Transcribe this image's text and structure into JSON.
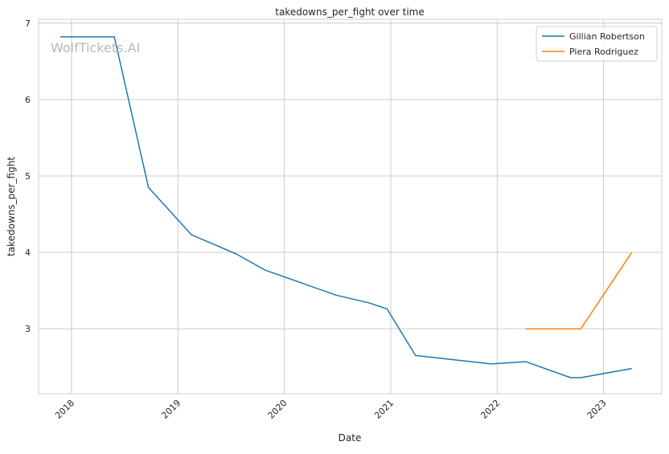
{
  "chart_data": {
    "type": "line",
    "title": "takedowns_per_fight over time",
    "xlabel": "Date",
    "ylabel": "takedowns_per_fight",
    "watermark": "WolfTickets.AI",
    "x_ticks": [
      "2018",
      "2019",
      "2020",
      "2021",
      "2022",
      "2023"
    ],
    "y_ticks": [
      3,
      4,
      5,
      6,
      7
    ],
    "xlim": [
      "2017-09-10",
      "2023-07-20"
    ],
    "ylim": [
      2.15,
      7.05
    ],
    "grid": true,
    "legend_position": "top-right",
    "series": [
      {
        "name": "Gillian Robertson",
        "color": "#1f77b4",
        "points": [
          [
            "2017-11-24",
            6.82
          ],
          [
            "2018-05-28",
            6.82
          ],
          [
            "2018-09-22",
            4.85
          ],
          [
            "2019-02-17",
            4.23
          ],
          [
            "2019-07-20",
            3.98
          ],
          [
            "2019-10-26",
            3.77
          ],
          [
            "2020-06-27",
            3.44
          ],
          [
            "2020-10-17",
            3.34
          ],
          [
            "2020-12-19",
            3.26
          ],
          [
            "2021-03-27",
            2.65
          ],
          [
            "2021-12-11",
            2.54
          ],
          [
            "2022-04-09",
            2.57
          ],
          [
            "2022-09-10",
            2.36
          ],
          [
            "2022-10-15",
            2.36
          ],
          [
            "2023-04-08",
            2.48
          ]
        ]
      },
      {
        "name": "Piera Rodriguez",
        "color": "#ff7f0e",
        "points": [
          [
            "2022-04-09",
            3.0
          ],
          [
            "2022-10-15",
            3.0
          ],
          [
            "2023-04-08",
            4.0
          ]
        ]
      }
    ]
  }
}
